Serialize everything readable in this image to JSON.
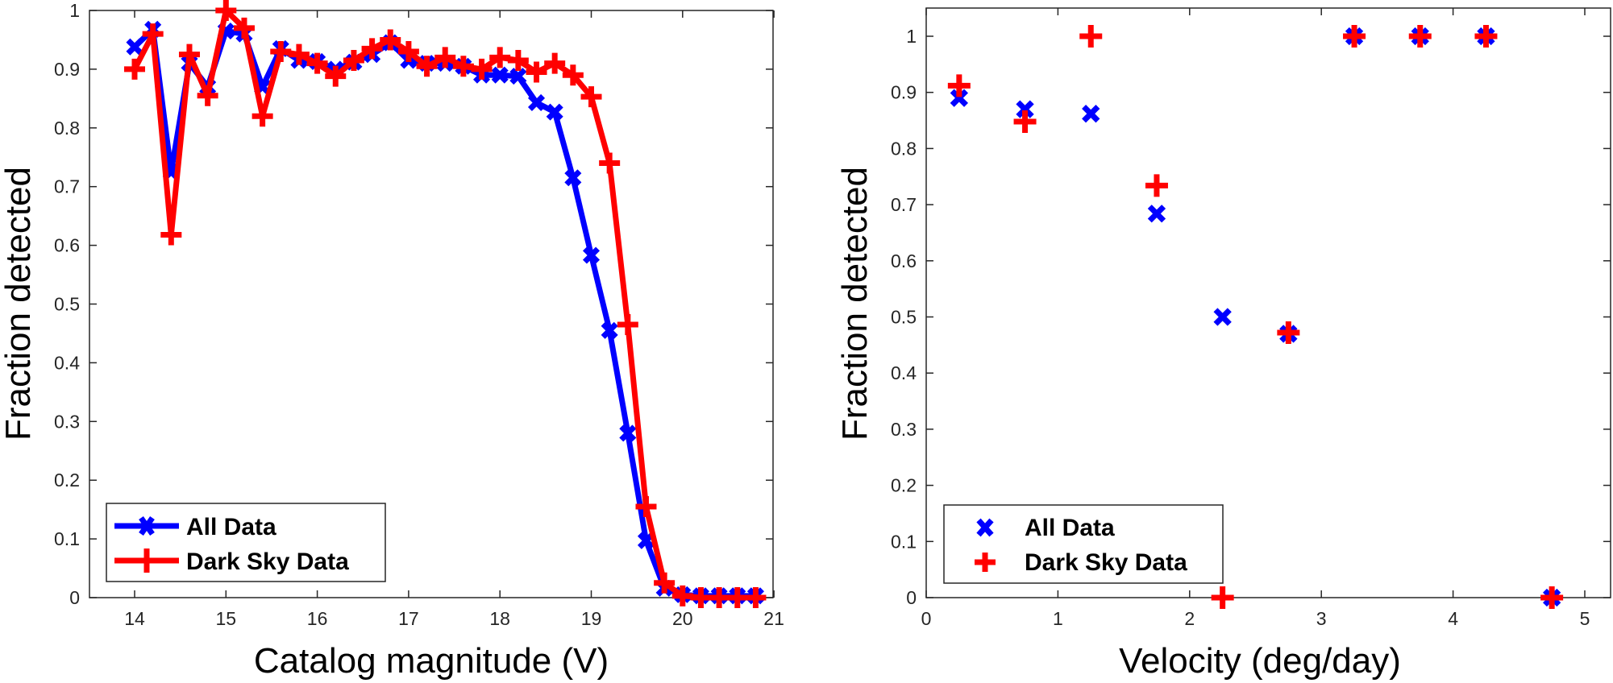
{
  "chart_data": [
    {
      "type": "line",
      "title": "",
      "xlabel": "Catalog magnitude (V)",
      "ylabel": "Fraction detected",
      "xlim": [
        13.5,
        21
      ],
      "ylim": [
        0,
        1
      ],
      "xticks": [
        14,
        15,
        16,
        17,
        18,
        19,
        20,
        21
      ],
      "yticks": [
        0,
        0.1,
        0.2,
        0.3,
        0.4,
        0.5,
        0.6,
        0.7,
        0.8,
        0.9,
        1
      ],
      "ytick_labels": [
        "0",
        "0.1",
        "0.2",
        "0.3",
        "0.4",
        "0.5",
        "0.6",
        "0.7",
        "0.8",
        "0.9",
        "1"
      ],
      "grid": false,
      "legend": {
        "position": "bottom-left",
        "entries": [
          "All Data",
          "Dark Sky Data"
        ]
      },
      "x": [
        14.0,
        14.2,
        14.4,
        14.6,
        14.8,
        15.0,
        15.2,
        15.4,
        15.6,
        15.8,
        16.0,
        16.2,
        16.4,
        16.6,
        16.8,
        17.0,
        17.2,
        17.4,
        17.6,
        17.8,
        18.0,
        18.2,
        18.4,
        18.6,
        18.8,
        19.0,
        19.2,
        19.4,
        19.6,
        19.8,
        20.0,
        20.2,
        20.4,
        20.6,
        20.8
      ],
      "series": [
        {
          "name": "All Data",
          "color": "#0000ff",
          "marker": "x",
          "values": [
            0.938,
            0.968,
            0.725,
            0.91,
            0.87,
            0.965,
            0.96,
            0.87,
            0.935,
            0.915,
            0.913,
            0.9,
            0.912,
            0.925,
            0.945,
            0.915,
            0.91,
            0.91,
            0.905,
            0.89,
            0.89,
            0.888,
            0.843,
            0.827,
            0.715,
            0.583,
            0.455,
            0.28,
            0.097,
            0.016,
            0.005,
            0.003,
            0.003,
            0.003,
            0.003
          ]
        },
        {
          "name": "Dark Sky Data",
          "color": "#ff0000",
          "marker": "+",
          "values": [
            0.9,
            0.96,
            0.618,
            0.925,
            0.855,
            1.0,
            0.97,
            0.82,
            0.93,
            0.925,
            0.91,
            0.888,
            0.915,
            0.935,
            0.95,
            0.93,
            0.905,
            0.92,
            0.905,
            0.9,
            0.92,
            0.915,
            0.895,
            0.91,
            0.89,
            0.853,
            0.74,
            0.465,
            0.155,
            0.025,
            0.003,
            0.0,
            0.0,
            0.0,
            0.0
          ]
        }
      ]
    },
    {
      "type": "scatter",
      "title": "",
      "xlabel": "Velocity (deg/day)",
      "ylabel": "Fraction detected",
      "xlim": [
        0,
        5.2
      ],
      "ylim": [
        0,
        1.05
      ],
      "xticks": [
        0,
        1,
        2,
        3,
        4,
        5
      ],
      "yticks": [
        0,
        0.1,
        0.2,
        0.3,
        0.4,
        0.5,
        0.6,
        0.7,
        0.8,
        0.9,
        1
      ],
      "ytick_labels": [
        "0",
        "0.1",
        "0.2",
        "0.3",
        "0.4",
        "0.5",
        "0.6",
        "0.7",
        "0.8",
        "0.9",
        "1"
      ],
      "grid": false,
      "legend": {
        "position": "bottom-left",
        "entries": [
          "All Data",
          "Dark Sky Data"
        ]
      },
      "x": [
        0.25,
        0.75,
        1.25,
        1.75,
        2.25,
        2.75,
        3.25,
        3.75,
        4.25,
        4.75
      ],
      "series": [
        {
          "name": "All Data",
          "color": "#0000ff",
          "marker": "x",
          "values": [
            0.89,
            0.87,
            0.862,
            0.684,
            0.5,
            0.47,
            1.0,
            1.0,
            1.0,
            0.0
          ]
        },
        {
          "name": "Dark Sky Data",
          "color": "#ff0000",
          "marker": "+",
          "values": [
            0.912,
            0.848,
            1.0,
            0.734,
            0.0,
            0.472,
            1.0,
            1.0,
            1.0,
            0.0
          ]
        }
      ]
    }
  ]
}
